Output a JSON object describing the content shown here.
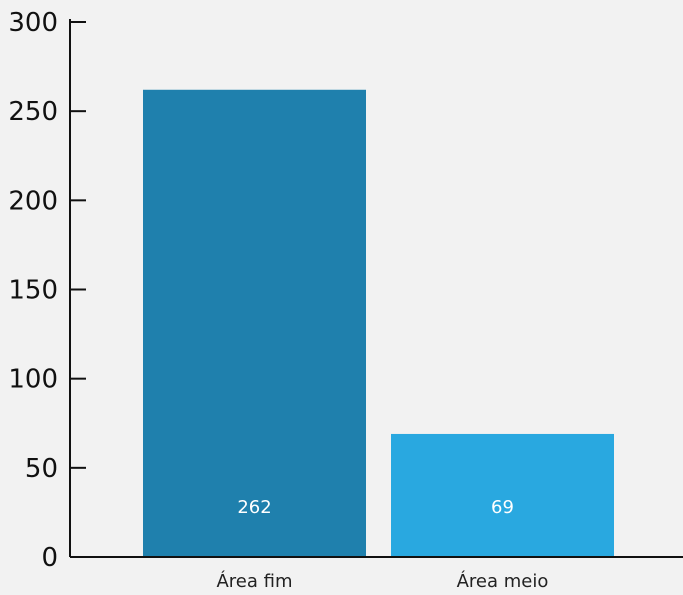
{
  "chart_data": {
    "type": "bar",
    "categories": [
      "Área fim",
      "Área meio"
    ],
    "values": [
      262,
      69
    ],
    "data_labels": [
      "262",
      "69"
    ],
    "bar_colors": [
      "#1f80ad",
      "#29a8e0"
    ],
    "ylim": [
      0,
      300
    ],
    "yticks": [
      0,
      50,
      100,
      150,
      200,
      250,
      300
    ],
    "ytick_labels": [
      "0",
      "50",
      "100",
      "150",
      "200",
      "250",
      "300"
    ],
    "title": "",
    "xlabel": "",
    "ylabel": "",
    "grid": false,
    "legend": "none",
    "axis_color": "#111111",
    "background": "#f2f2f2"
  }
}
